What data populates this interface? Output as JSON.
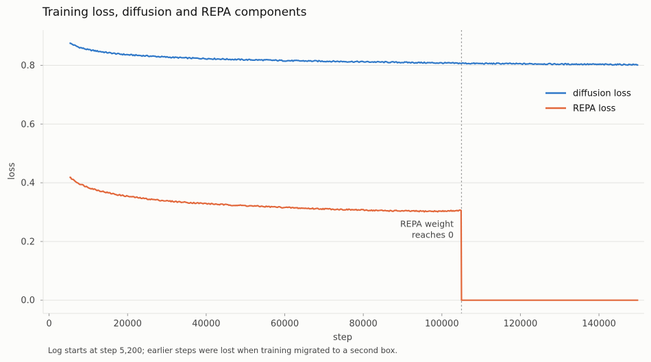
{
  "chart_data": {
    "type": "line",
    "title": "Training loss, diffusion and REPA components",
    "xlabel": "step",
    "ylabel": "loss",
    "xlim": [
      -1500,
      151500
    ],
    "ylim": [
      -0.045,
      0.92
    ],
    "xticks": [
      0,
      20000,
      40000,
      60000,
      80000,
      100000,
      120000,
      140000
    ],
    "xtick_labels": [
      "0",
      "20000",
      "40000",
      "60000",
      "80000",
      "100000",
      "120000",
      "140000"
    ],
    "yticks": [
      0.0,
      0.2,
      0.4,
      0.6,
      0.8
    ],
    "ytick_labels": [
      "0.0",
      "0.2",
      "0.4",
      "0.6",
      "0.8"
    ],
    "grid": "horizontal",
    "legend_position": "upper-right",
    "series": [
      {
        "name": "diffusion loss",
        "color": "#2f78c8",
        "x": [
          5200,
          7500,
          10000,
          12500,
          15000,
          17500,
          20000,
          25000,
          30000,
          35000,
          40000,
          45000,
          50000,
          55000,
          60000,
          65000,
          70000,
          75000,
          80000,
          85000,
          90000,
          95000,
          100000,
          105000,
          110000,
          115000,
          120000,
          125000,
          130000,
          135000,
          140000,
          145000,
          150000
        ],
        "y": [
          0.876,
          0.862,
          0.853,
          0.848,
          0.843,
          0.839,
          0.836,
          0.832,
          0.828,
          0.825,
          0.823,
          0.821,
          0.819,
          0.818,
          0.816,
          0.815,
          0.814,
          0.813,
          0.812,
          0.811,
          0.81,
          0.809,
          0.808,
          0.807,
          0.806,
          0.806,
          0.805,
          0.805,
          0.804,
          0.804,
          0.803,
          0.803,
          0.802
        ]
      },
      {
        "name": "REPA loss",
        "color": "#e2673a",
        "x": [
          5200,
          7500,
          10000,
          12500,
          15000,
          17500,
          20000,
          25000,
          30000,
          35000,
          40000,
          45000,
          50000,
          55000,
          60000,
          65000,
          70000,
          75000,
          80000,
          85000,
          90000,
          95000,
          100000,
          104900,
          105000,
          110000,
          120000,
          130000,
          140000,
          150000
        ],
        "y": [
          0.419,
          0.398,
          0.384,
          0.374,
          0.366,
          0.359,
          0.354,
          0.345,
          0.338,
          0.333,
          0.329,
          0.325,
          0.322,
          0.319,
          0.316,
          0.313,
          0.311,
          0.309,
          0.307,
          0.305,
          0.304,
          0.303,
          0.303,
          0.306,
          0.0,
          0.0,
          0.0,
          0.0,
          0.0,
          0.0
        ]
      }
    ],
    "annotations": [
      {
        "type": "vline",
        "x": 105000,
        "style": "dotted"
      },
      {
        "type": "text",
        "lines": [
          "REPA weight",
          "reaches 0"
        ],
        "x": 103000,
        "y": 0.25
      }
    ],
    "footnote": "Log starts at step 5,200; earlier steps were lost when training migrated to a second box."
  }
}
